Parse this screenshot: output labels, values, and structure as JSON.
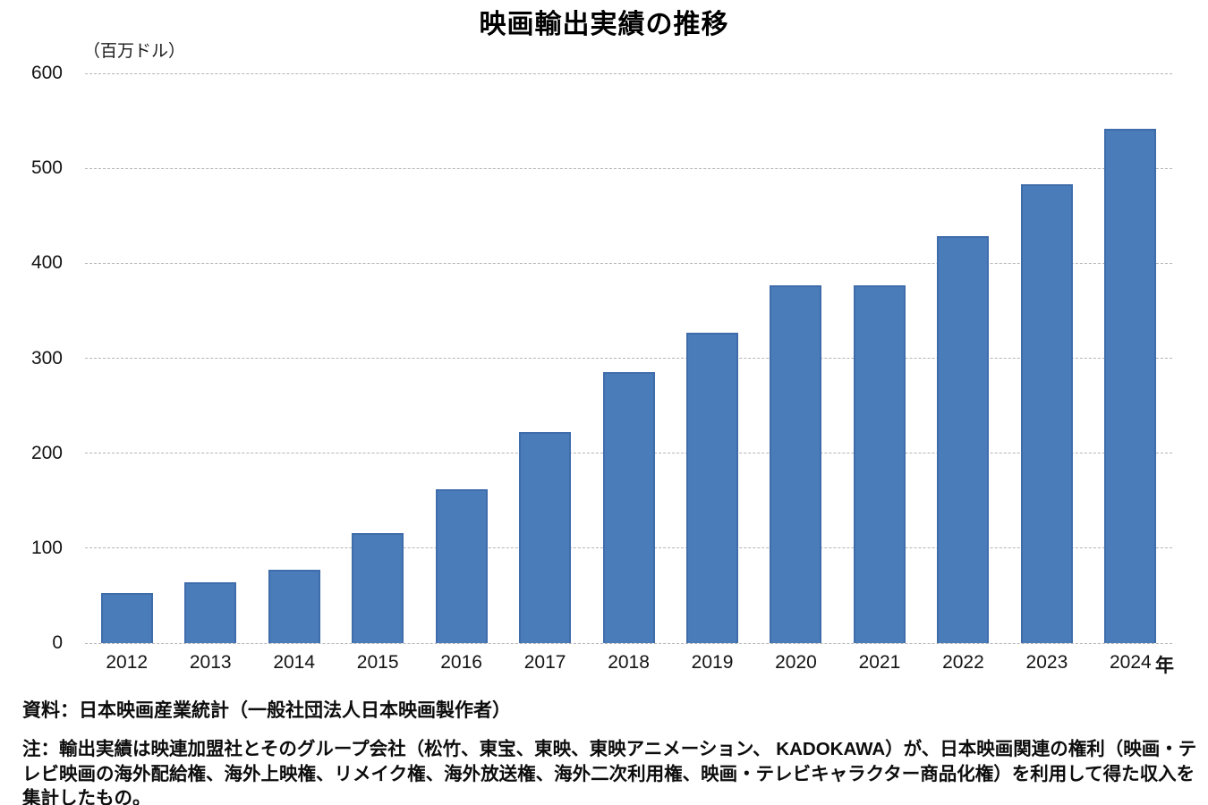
{
  "chart_data": {
    "type": "bar",
    "title": "映画輸出実績の推移",
    "unit_label": "（百万ドル）",
    "x_axis_suffix": "年",
    "categories": [
      "2012",
      "2013",
      "2014",
      "2015",
      "2016",
      "2017",
      "2018",
      "2019",
      "2020",
      "2021",
      "2022",
      "2023",
      "2024"
    ],
    "values": [
      53,
      64,
      77,
      116,
      162,
      222,
      285,
      327,
      377,
      377,
      429,
      483,
      542
    ],
    "ylim": [
      0,
      600
    ],
    "yticks": [
      0,
      100,
      200,
      300,
      400,
      500,
      600
    ],
    "grid": "horizontal-dashed",
    "legend_position": "none",
    "bar_color": "#4a7cba",
    "bar_border_color": "#3f6cab",
    "gridline_color": "#b5b5b5"
  },
  "footer": {
    "source": "資料：日本映画産業統計（一般社団法人日本映画製作者）",
    "note": "注：輸出実績は映連加盟社とそのグループ会社（松竹、東宝、東映、東映アニメーション、 KADOKAWA）が、日本映画関連の権利（映画・テレビ映画の海外配給権、海外上映権、リメイク権、海外放送権、海外二次利用権、映画・テレビキャラクター商品化権）を利用して得た収入を集計したもの。"
  }
}
